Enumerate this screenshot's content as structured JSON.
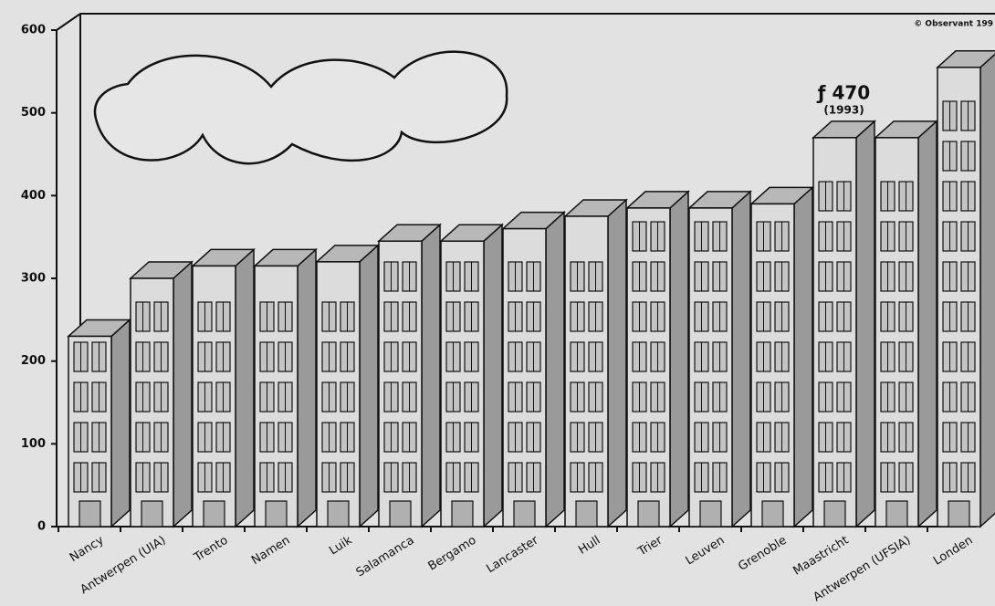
{
  "chart_data": {
    "type": "bar",
    "categories": [
      "Nancy",
      "Antwerpen (UIA)",
      "Trento",
      "Namen",
      "Luik",
      "Salamanca",
      "Bergamo",
      "Lancaster",
      "Hull",
      "Trier",
      "Leuven",
      "Grenoble",
      "Maastricht",
      "Antwerpen (UFSIA)",
      "Londen"
    ],
    "values": [
      230,
      300,
      315,
      315,
      320,
      345,
      345,
      360,
      375,
      385,
      385,
      390,
      470,
      470,
      555
    ],
    "color": "#dcdcdc",
    "ylim": [
      0,
      600
    ],
    "yticks": [
      0,
      100,
      200,
      300,
      400,
      500,
      600
    ],
    "annotation": {
      "text": "ƒ 470",
      "sub": "(1993)",
      "category_index": 12
    },
    "credit": "© Observant 199"
  }
}
